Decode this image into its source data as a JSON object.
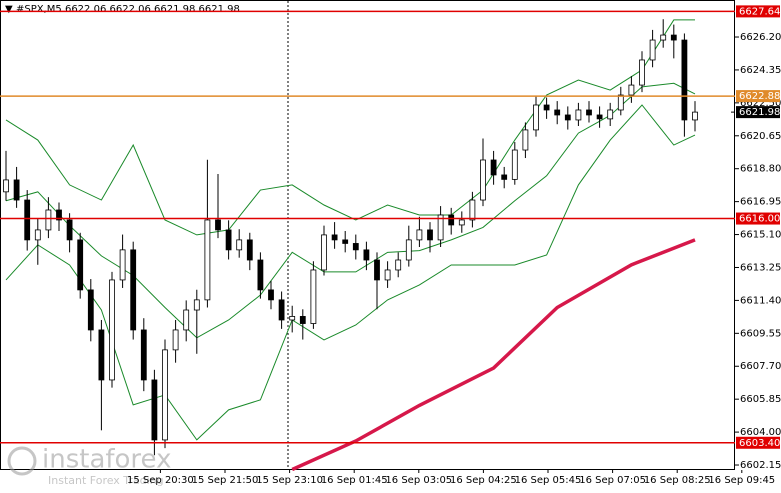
{
  "chart_data": {
    "type": "candlestick",
    "title": "#SPX,M5 6622.06 6622.06 6621.98 6621.98",
    "ylim": [
      6601.87,
      6628.28
    ],
    "yticks": [
      {
        "value": 6626.2,
        "label": "6626.20"
      },
      6624.35,
      {
        "value": 6622.5,
        "label": "6622.50"
      },
      6620.65,
      {
        "value": 6618.8,
        "label": "6618.80"
      },
      6616.95,
      {
        "value": 6615.1,
        "label": "6615.10"
      },
      6613.25,
      {
        "value": 6611.4,
        "label": "6611.40"
      },
      6609.55,
      {
        "value": 6607.7,
        "label": "6607.70"
      },
      6605.85,
      {
        "value": 6604,
        "label": "6604.00"
      },
      6602.15
    ],
    "xlabels": [
      "15 Sep 20:30",
      "15 Sep 21:50",
      "15 Sep 23:10",
      "16 Sep 01:45",
      "16 Sep 03:05",
      "16 Sep 04:25",
      "16 Sep 05:45",
      "16 Sep 07:05",
      "16 Sep 08:25",
      "16 Sep 09:45"
    ],
    "candles": [
      [
        6617.5,
        6619.8,
        6617.0,
        6618.17
      ],
      [
        6618.17,
        6618.9,
        6616.6,
        6617.04
      ],
      [
        6617.04,
        6617.6,
        6614.2,
        6614.8
      ],
      [
        6614.8,
        6616.0,
        6613.4,
        6615.36
      ],
      [
        6615.36,
        6617.2,
        6614.9,
        6616.48
      ],
      [
        6616.48,
        6616.9,
        6615.3,
        6615.92
      ],
      [
        6615.92,
        6616.3,
        6614.1,
        6614.8
      ],
      [
        6614.8,
        6615.2,
        6611.5,
        6611.99
      ],
      [
        6611.99,
        6612.6,
        6609.1,
        6609.74
      ],
      [
        6609.74,
        6610.3,
        6604.1,
        6606.93
      ],
      [
        6606.93,
        6613.0,
        6606.5,
        6612.55
      ],
      [
        6612.55,
        6615.1,
        6612.1,
        6614.24
      ],
      [
        6614.24,
        6614.7,
        6609.2,
        6609.74
      ],
      [
        6609.74,
        6610.4,
        6606.3,
        6606.93
      ],
      [
        6606.93,
        6607.5,
        6602.7,
        6603.56
      ],
      [
        6603.56,
        6609.2,
        6603.1,
        6608.62
      ],
      [
        6608.62,
        6610.3,
        6607.9,
        6609.74
      ],
      [
        6609.74,
        6611.4,
        6609.1,
        6610.86
      ],
      [
        6610.86,
        6612.0,
        6608.4,
        6611.43
      ],
      [
        6611.43,
        6619.3,
        6611.0,
        6615.92
      ],
      [
        6615.92,
        6618.5,
        6614.9,
        6615.36
      ],
      [
        6615.36,
        6615.9,
        6613.7,
        6614.24
      ],
      [
        6614.24,
        6615.4,
        6613.8,
        6614.8
      ],
      [
        6614.8,
        6615.2,
        6613.1,
        6613.67
      ],
      [
        6613.67,
        6614.1,
        6611.5,
        6611.99
      ],
      [
        6611.99,
        6612.5,
        6610.9,
        6611.43
      ],
      [
        6611.43,
        6611.9,
        6609.8,
        6610.3
      ],
      [
        6610.3,
        6611.1,
        6609.6,
        6610.5
      ],
      [
        6610.5,
        6610.9,
        6609.2,
        6610.1
      ],
      [
        6610.1,
        6613.6,
        6609.8,
        6613.11
      ],
      [
        6613.11,
        6615.6,
        6612.8,
        6615.08
      ],
      [
        6615.08,
        6615.8,
        6614.3,
        6614.8
      ],
      [
        6614.8,
        6615.3,
        6614.1,
        6614.6
      ],
      [
        6614.6,
        6615.1,
        6613.7,
        6614.24
      ],
      [
        6614.24,
        6614.7,
        6613.1,
        6613.67
      ],
      [
        6613.67,
        6614.1,
        6610.9,
        6612.55
      ],
      [
        6612.55,
        6613.6,
        6612.1,
        6613.11
      ],
      [
        6613.11,
        6614.1,
        6612.7,
        6613.67
      ],
      [
        6613.67,
        6615.6,
        6613.3,
        6614.8
      ],
      [
        6614.8,
        6616.1,
        6614.4,
        6615.36
      ],
      [
        6615.36,
        6615.8,
        6614.1,
        6614.8
      ],
      [
        6614.8,
        6616.7,
        6614.4,
        6616.2
      ],
      [
        6616.2,
        6616.6,
        6615.1,
        6615.64
      ],
      [
        6615.64,
        6616.4,
        6615.2,
        6615.92
      ],
      [
        6615.92,
        6617.5,
        6615.5,
        6617.04
      ],
      [
        6617.04,
        6620.5,
        6616.7,
        6619.29
      ],
      [
        6619.29,
        6619.8,
        6617.9,
        6618.45
      ],
      [
        6618.45,
        6618.9,
        6617.7,
        6618.2
      ],
      [
        6618.2,
        6620.3,
        6617.9,
        6619.85
      ],
      [
        6619.85,
        6621.4,
        6619.4,
        6620.98
      ],
      [
        6620.98,
        6622.9,
        6620.6,
        6622.38
      ],
      [
        6622.38,
        6622.8,
        6621.6,
        6622.1
      ],
      [
        6622.1,
        6622.6,
        6621.3,
        6621.82
      ],
      [
        6621.82,
        6622.3,
        6621.0,
        6621.54
      ],
      [
        6621.54,
        6622.5,
        6621.2,
        6622.1
      ],
      [
        6622.1,
        6622.6,
        6621.4,
        6621.82
      ],
      [
        6621.82,
        6622.3,
        6621.1,
        6621.6
      ],
      [
        6621.6,
        6622.5,
        6621.2,
        6622.1
      ],
      [
        6622.1,
        6623.4,
        6621.8,
        6622.94
      ],
      [
        6622.94,
        6624.0,
        6622.5,
        6623.5
      ],
      [
        6623.5,
        6625.4,
        6623.1,
        6624.91
      ],
      [
        6624.91,
        6626.6,
        6624.5,
        6626.03
      ],
      [
        6626.03,
        6627.2,
        6625.6,
        6626.31
      ],
      [
        6626.31,
        6626.9,
        6625.0,
        6626.03
      ],
      [
        6626.03,
        6626.4,
        6620.6,
        6621.54
      ],
      [
        6621.54,
        6622.6,
        6620.9,
        6621.98
      ]
    ],
    "overlays": [
      {
        "color": "#1a8a2a",
        "x": [
          0,
          3,
          6,
          9,
          12,
          15,
          18,
          21,
          24,
          27,
          30,
          33,
          36,
          39,
          42,
          45,
          48,
          51,
          54,
          57,
          60,
          63,
          65
        ],
        "values": [
          6621.54,
          6620.41,
          6617.89,
          6617.04,
          6620.13,
          6615.92,
          6615.08,
          6615.36,
          6617.6,
          6617.89,
          6616.76,
          6615.92,
          6616.76,
          6616.2,
          6616.2,
          6617.6,
          6620.41,
          6622.94,
          6623.78,
          6623.22,
          6624.35,
          6627.16,
          6627.16
        ]
      },
      {
        "color": "#1a8a2a",
        "x": [
          0,
          3,
          6,
          9,
          12,
          15,
          18,
          21,
          24,
          27,
          30,
          33,
          36,
          39,
          42,
          45,
          48,
          51,
          54,
          57,
          60,
          63,
          65
        ],
        "values": [
          6617.0,
          6617.5,
          6615.6,
          6613.9,
          6612.8,
          6611.0,
          6609.3,
          6610.3,
          6611.7,
          6614.1,
          6613.0,
          6613.0,
          6614.1,
          6614.2,
          6614.8,
          6615.5,
          6617.0,
          6618.4,
          6620.8,
          6621.8,
          6623.4,
          6623.6,
          6623.0
        ]
      },
      {
        "color": "#1a8a2a",
        "x": [
          0,
          3,
          6,
          9,
          12,
          15,
          18,
          21,
          24,
          27,
          30,
          33,
          36,
          39,
          42,
          45,
          48,
          51,
          54,
          57,
          60,
          63,
          65
        ],
        "values": [
          6612.55,
          6614.52,
          6613.39,
          6610.86,
          6605.53,
          6606.09,
          6603.56,
          6605.25,
          6605.81,
          6610.3,
          6609.18,
          6610.02,
          6611.43,
          6612.27,
          6613.39,
          6613.39,
          6613.39,
          6613.95,
          6617.89,
          6620.41,
          6622.38,
          6620.13,
          6620.69
        ]
      },
      {
        "color": "#d6184a",
        "x": [
          27,
          33,
          39,
          46,
          52,
          59,
          65
        ],
        "values": [
          6601.9,
          6603.5,
          6605.5,
          6607.6,
          6611.0,
          6613.4,
          6614.8
        ]
      }
    ],
    "levels": [
      {
        "value": 6627.64,
        "label": "6627.64",
        "color": "#e00000"
      },
      {
        "value": 6622.88,
        "label": "6622.88",
        "color": "#e08a2a"
      },
      {
        "value": 6616,
        "label": "6616.00",
        "color": "#e00000"
      },
      {
        "value": 6603.4,
        "label": "6603.40",
        "color": "#e00000"
      }
    ],
    "current": {
      "value": 6621.98,
      "label": "6621.98"
    },
    "watermark": {
      "brand": "instaforex",
      "tagline": "Instant Forex Trading"
    }
  }
}
